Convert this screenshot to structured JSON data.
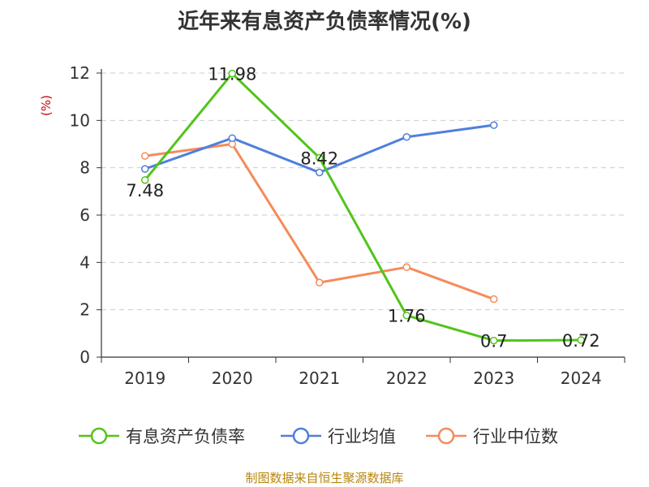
{
  "chart_data": {
    "type": "line",
    "title": "近年来有息资产负债率情况(%)",
    "ylabel": "(%)",
    "xlabel": "",
    "categories": [
      "2019",
      "2020",
      "2021",
      "2022",
      "2023",
      "2024"
    ],
    "ylim": [
      0,
      12
    ],
    "yticks": [
      0,
      2,
      4,
      6,
      8,
      10,
      12
    ],
    "grid": "horizontal-dashed",
    "legend_position": "bottom",
    "series": [
      {
        "name": "有息资产负债率",
        "color": "#52c41a",
        "values": [
          7.48,
          11.98,
          8.42,
          1.76,
          0.7,
          0.72
        ],
        "labels": [
          "7.48",
          "11.98",
          "8.42",
          "1.76",
          "0.7",
          "0.72"
        ]
      },
      {
        "name": "行业均值",
        "color": "#4f7fdc",
        "values": [
          7.95,
          9.25,
          7.8,
          9.3,
          9.8,
          null
        ]
      },
      {
        "name": "行业中位数",
        "color": "#f58b5b",
        "values": [
          8.5,
          9.0,
          3.15,
          3.8,
          2.45,
          null
        ]
      }
    ]
  },
  "source": "制图数据来自恒生聚源数据库",
  "colors": {
    "axis": "#333333",
    "grid": "#cccccc",
    "unit": "#cc0000",
    "source": "#b8860b"
  }
}
